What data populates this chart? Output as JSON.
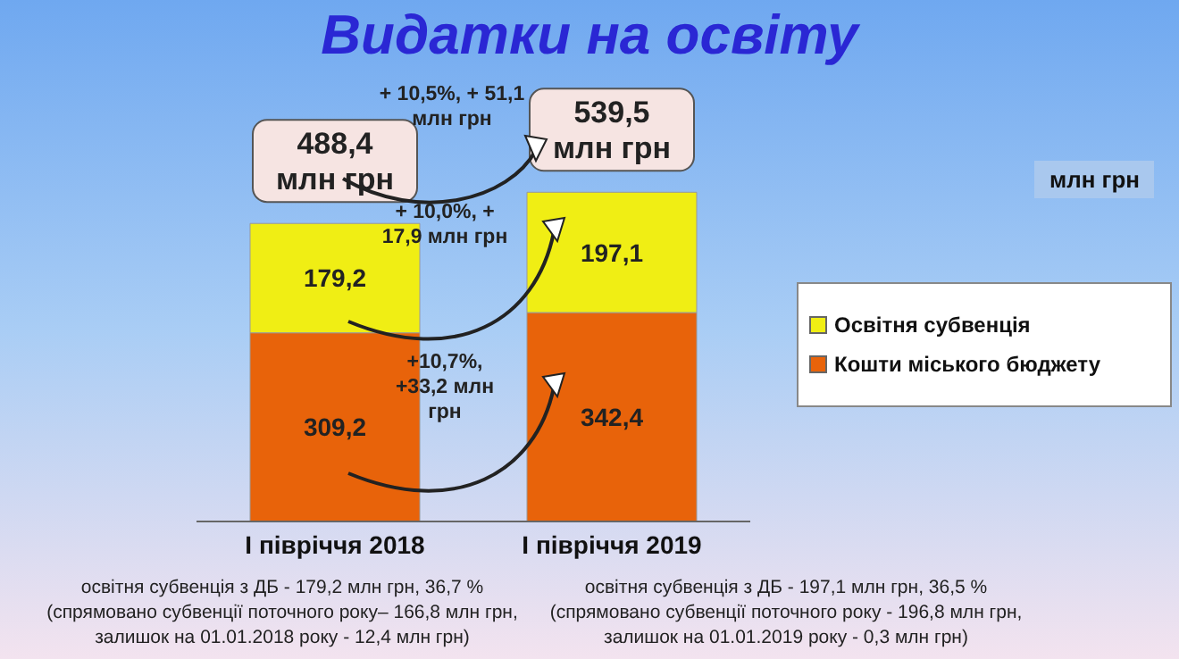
{
  "chart_data": {
    "type": "bar",
    "title": "Видатки на освіту",
    "stacked": true,
    "legend": "right",
    "categories": [
      "І півріччя 2018",
      "І півріччя 2019"
    ],
    "series": [
      {
        "name": "Кошти міського бюджету",
        "color": "#e8630a",
        "values": [
          309.2,
          342.4
        ],
        "value_labels": [
          "309,2",
          "342,4"
        ]
      },
      {
        "name": "Освітня субвенція",
        "color": "#f0ee14",
        "values": [
          179.2,
          197.1
        ],
        "value_labels": [
          "179,2",
          "197,1"
        ]
      }
    ],
    "totals": [
      "488,4 млн грн",
      "539,5 млн грн"
    ],
    "annotations": [
      "млн грн",
      "+ 10,5%, + 51,1 млн грн",
      "+ 10,0%, + 17,9 млн грн",
      "+10,7%, +33,2 млн грн",
      "освітня субвенція з ДБ - 179,2 млн грн, 36,7 % (спрямовано субвенції поточного року– 166,8 млн грн, залишок на 01.01.2018 року - 12,4 млн грн)",
      "освітня субвенція з ДБ - 197,1 млн грн, 36,5 % (спрямовано субвенції поточного року - 196,8 млн грн, залишок на 01.01.2019 року - 0,3 млн грн)"
    ]
  }
}
